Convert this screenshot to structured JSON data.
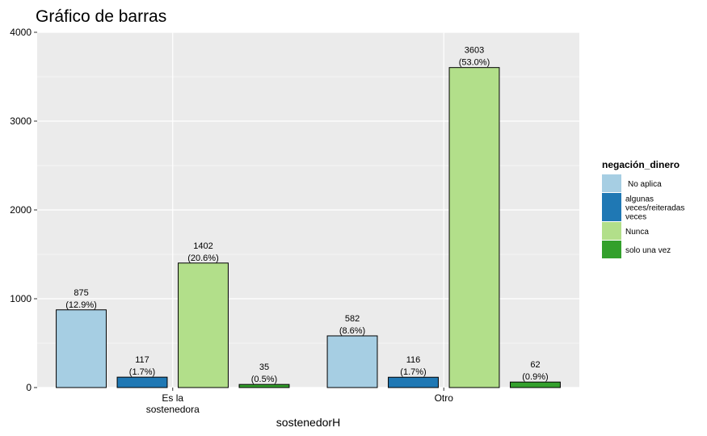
{
  "chart_data": {
    "type": "bar",
    "title": "Gráfico de barras",
    "xlabel": "sostenedorH",
    "ylabel": "",
    "ylim": [
      0,
      4000
    ],
    "yticks": [
      0,
      1000,
      2000,
      3000,
      4000
    ],
    "grid": true,
    "legend_position": "right",
    "legend_title": "negación_dinero",
    "categories": [
      "Es la sostenedora",
      "Otro"
    ],
    "category_label_lines": [
      [
        "Es la",
        "sostenedora"
      ],
      [
        "Otro"
      ]
    ],
    "series": [
      {
        "name": "No aplica",
        "legend_lines": [
          "No aplica"
        ],
        "color": "#a6cee3",
        "values": [
          875,
          582
        ],
        "value_labels": [
          "875",
          "582"
        ],
        "percent_labels": [
          "(12.9%)",
          "(8.6%)"
        ]
      },
      {
        "name": "algunas veces/reiteradas veces",
        "legend_lines": [
          "algunas",
          "veces/reiteradas",
          "veces"
        ],
        "color": "#1f78b4",
        "values": [
          117,
          116
        ],
        "value_labels": [
          "117",
          "116"
        ],
        "percent_labels": [
          "(1.7%)",
          "(1.7%)"
        ]
      },
      {
        "name": "Nunca",
        "legend_lines": [
          "Nunca"
        ],
        "color": "#b2df8a",
        "values": [
          1402,
          3603
        ],
        "value_labels": [
          "1402",
          "3603"
        ],
        "percent_labels": [
          "(20.6%)",
          "(53.0%)"
        ]
      },
      {
        "name": "solo una vez",
        "legend_lines": [
          "solo una vez"
        ],
        "color": "#33a02c",
        "values": [
          35,
          62
        ],
        "value_labels": [
          "35",
          "62"
        ],
        "percent_labels": [
          "(0.5%)",
          "(0.9%)"
        ]
      }
    ],
    "colors": {
      "panel_background": "#ebebeb",
      "grid": "#ffffff",
      "bar_outline": "#000000"
    }
  }
}
